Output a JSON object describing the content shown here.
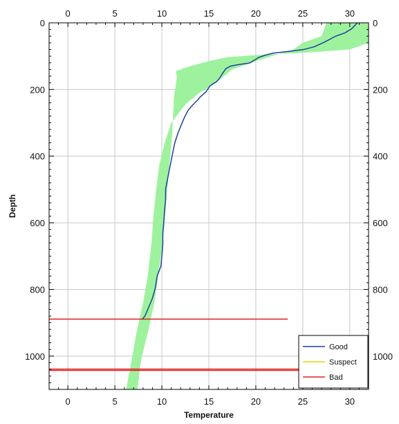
{
  "chart_data": {
    "type": "line",
    "title": "",
    "xlabel": "Temperature",
    "ylabel": "Depth",
    "xlim": [
      -2,
      32
    ],
    "ylim": [
      0,
      1100
    ],
    "y_inverted": true,
    "xticks": [
      0,
      5,
      10,
      15,
      20,
      25,
      30
    ],
    "xtick_labels": [
      "0",
      "5",
      "10",
      "15",
      "20",
      "25",
      "30"
    ],
    "yticks": [
      0,
      200,
      400,
      600,
      800,
      1000
    ],
    "ytick_labels": [
      "0",
      "200",
      "400",
      "600",
      "800",
      "1000"
    ],
    "grid": true,
    "legend_position": "bottom-right",
    "legend": [
      {
        "name": "Good",
        "color": "#1f3fa0"
      },
      {
        "name": "Suspect",
        "color": "#e8d200"
      },
      {
        "name": "Bad",
        "color": "#e02020"
      }
    ],
    "envelope": {
      "color": "#9ef29e",
      "upper": [
        [
          32,
          0
        ],
        [
          32,
          60
        ],
        [
          30,
          80
        ],
        [
          25,
          90
        ],
        [
          21,
          95
        ],
        [
          17,
          103
        ],
        [
          15,
          115
        ],
        [
          13,
          130
        ],
        [
          11.5,
          145
        ],
        [
          11.6,
          165
        ],
        [
          11.3,
          220
        ],
        [
          11.1,
          330
        ],
        [
          10.9,
          400
        ],
        [
          10.6,
          490
        ],
        [
          10.4,
          560
        ],
        [
          10.1,
          660
        ],
        [
          9.7,
          740
        ],
        [
          9.2,
          840
        ],
        [
          8.5,
          930
        ],
        [
          7.8,
          1010
        ],
        [
          7.4,
          1100
        ]
      ],
      "lower": [
        [
          27.5,
          0
        ],
        [
          27,
          40
        ],
        [
          25,
          60
        ],
        [
          24,
          80
        ],
        [
          20,
          115
        ],
        [
          17.5,
          140
        ],
        [
          15.5,
          185
        ],
        [
          14,
          210
        ],
        [
          12.5,
          245
        ],
        [
          11,
          300
        ],
        [
          10.3,
          360
        ],
        [
          9.7,
          430
        ],
        [
          9.4,
          500
        ],
        [
          9.1,
          580
        ],
        [
          8.9,
          660
        ],
        [
          8.5,
          760
        ],
        [
          8,
          840
        ],
        [
          7.3,
          930
        ],
        [
          6.8,
          1010
        ],
        [
          6.2,
          1100
        ]
      ]
    },
    "series": [
      {
        "name": "Good",
        "color": "#1f3fa0",
        "points": [
          [
            30.8,
            0
          ],
          [
            30.2,
            18
          ],
          [
            29.5,
            30
          ],
          [
            28.5,
            40
          ],
          [
            27.7,
            52
          ],
          [
            27,
            62
          ],
          [
            26.2,
            72
          ],
          [
            25.1,
            80
          ],
          [
            24,
            84
          ],
          [
            22.8,
            88
          ],
          [
            21.8,
            91
          ],
          [
            21,
            97
          ],
          [
            20.3,
            104
          ],
          [
            19.8,
            113
          ],
          [
            19.3,
            121
          ],
          [
            18.2,
            125
          ],
          [
            17.3,
            130
          ],
          [
            16.8,
            138
          ],
          [
            16.5,
            150
          ],
          [
            16.1,
            168
          ],
          [
            15.8,
            177
          ],
          [
            15.5,
            182
          ],
          [
            15.1,
            190
          ],
          [
            14.7,
            207
          ],
          [
            14.1,
            222
          ],
          [
            13.8,
            232
          ],
          [
            13.3,
            246
          ],
          [
            12.8,
            262
          ],
          [
            12.4,
            284
          ],
          [
            12.1,
            304
          ],
          [
            11.7,
            332
          ],
          [
            11.4,
            358
          ],
          [
            11.2,
            384
          ],
          [
            11,
            413
          ],
          [
            10.8,
            440
          ],
          [
            10.6,
            470
          ],
          [
            10.4,
            500
          ],
          [
            10.4,
            530
          ],
          [
            10.3,
            560
          ],
          [
            10.2,
            600
          ],
          [
            10.1,
            632
          ],
          [
            10.1,
            666
          ],
          [
            10,
            700
          ],
          [
            9.9,
            730
          ],
          [
            9.5,
            760
          ],
          [
            9.3,
            796
          ],
          [
            9,
            826
          ],
          [
            8.6,
            853
          ],
          [
            8.2,
            880
          ],
          [
            7.9,
            890
          ]
        ]
      },
      {
        "name": "Bad",
        "color": "#e02020",
        "segments": [
          {
            "x": [
              -2,
              23.4
            ],
            "y": 889
          },
          {
            "x": [
              -2,
              32
            ],
            "y": 1039
          },
          {
            "x": [
              -2,
              32
            ],
            "y": 1043
          }
        ]
      }
    ]
  }
}
